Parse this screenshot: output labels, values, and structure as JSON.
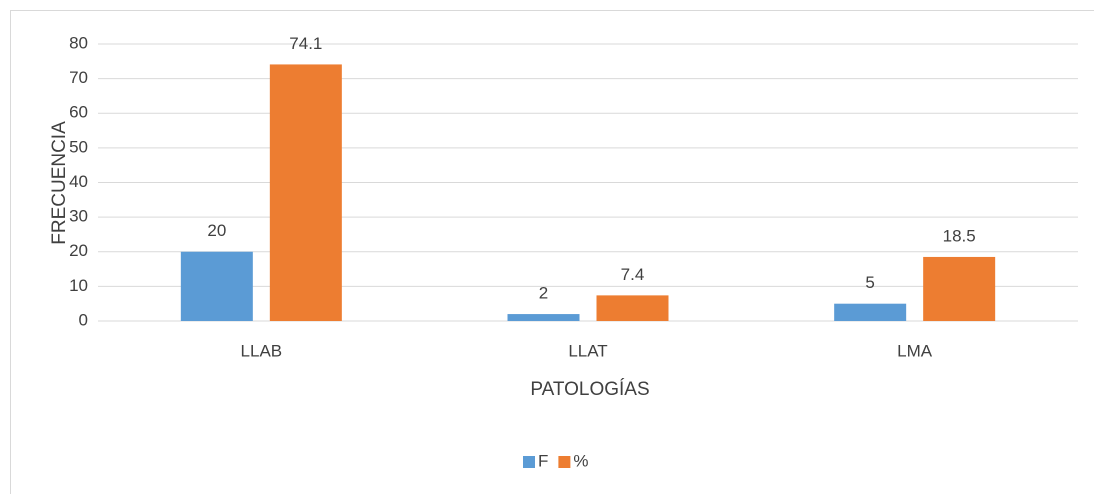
{
  "chart_data": {
    "type": "bar",
    "categories": [
      "LLAB",
      "LLAT",
      "LMA"
    ],
    "series": [
      {
        "name": "F",
        "color": "#5b9bd5",
        "values": [
          20,
          2,
          5
        ]
      },
      {
        "name": "%",
        "color": "#ed7d31",
        "values": [
          74.1,
          7.4,
          18.5
        ]
      }
    ],
    "x_label": "PATOLOGÍAS",
    "y_label": "FRECUENCIA",
    "ylim": [
      0,
      80
    ],
    "yticks": [
      0,
      10,
      20,
      30,
      40,
      50,
      60,
      70,
      80
    ],
    "grid": true,
    "legend": "bottom"
  }
}
